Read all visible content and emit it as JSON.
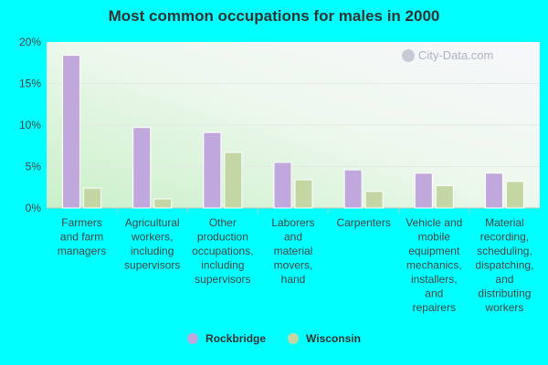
{
  "chart_data": {
    "type": "bar",
    "title": "Most common occupations for males in 2000",
    "categories": [
      [
        "Farmers",
        "and farm",
        "managers"
      ],
      [
        "Agricultural",
        "workers,",
        "including",
        "supervisors"
      ],
      [
        "Other",
        "production",
        "occupations,",
        "including",
        "supervisors"
      ],
      [
        "Laborers",
        "and",
        "material",
        "movers,",
        "hand"
      ],
      [
        "Carpenters"
      ],
      [
        "Vehicle and",
        "mobile",
        "equipment",
        "mechanics,",
        "installers,",
        "and",
        "repairers"
      ],
      [
        "Material",
        "recording,",
        "scheduling,",
        "dispatching,",
        "and",
        "distributing",
        "workers"
      ]
    ],
    "series": [
      {
        "name": "Rockbridge",
        "color": "#C0A8DC",
        "values": [
          18.4,
          9.7,
          9.1,
          5.5,
          4.6,
          4.2,
          4.2
        ]
      },
      {
        "name": "Wisconsin",
        "color": "#C5D6A5",
        "values": [
          2.4,
          1.1,
          6.7,
          3.4,
          2.0,
          2.7,
          3.2
        ]
      }
    ],
    "ylim": [
      0,
      20
    ],
    "yticks": [
      "0%",
      "5%",
      "10%",
      "15%",
      "20%"
    ],
    "ytick_values": [
      0,
      5,
      10,
      15,
      20
    ],
    "grid": true,
    "legend": "bottom-center"
  },
  "watermark": "City-Data.com"
}
